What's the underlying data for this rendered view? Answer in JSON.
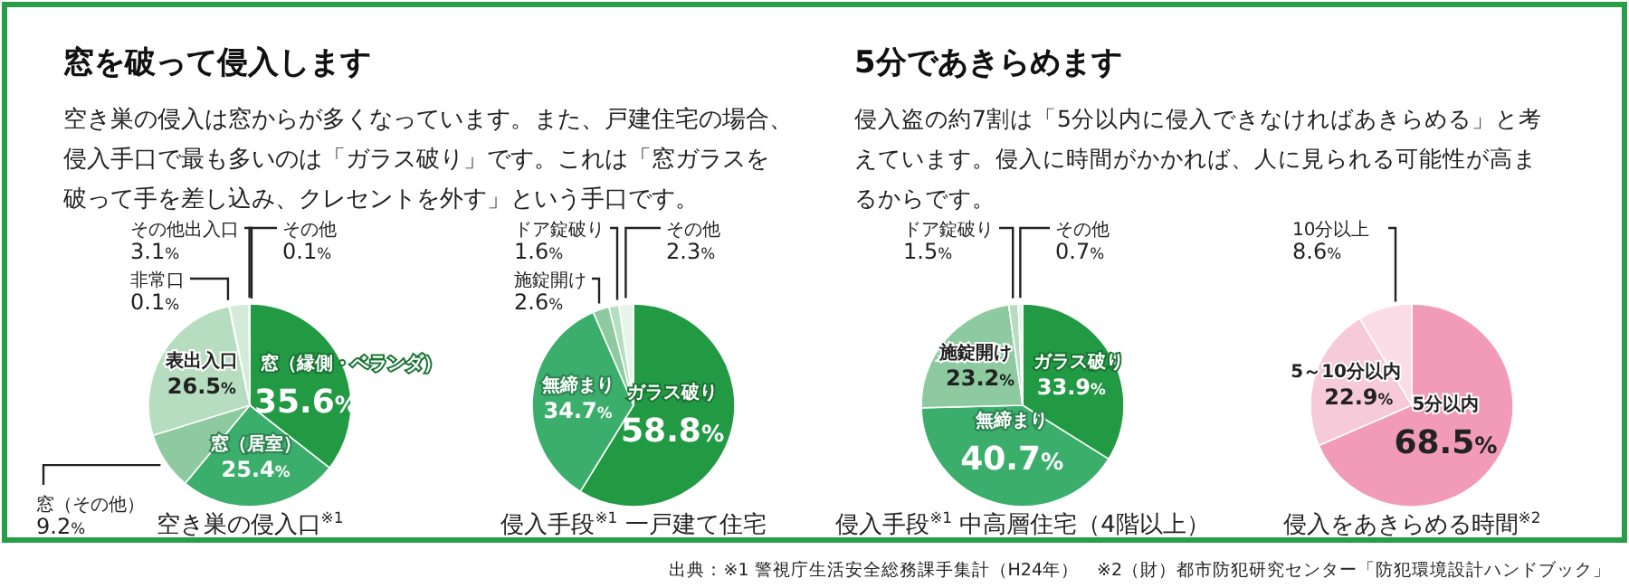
{
  "chart_data": [
    {
      "type": "pie",
      "title": "空き巣の侵入口$^{※1}$",
      "categories": [
        "窓（縁側・ベランダ）",
        "窓（居室）",
        "窓（その他）",
        "表出入口",
        "非常口",
        "その他出入口",
        "その他"
      ],
      "values": [
        35.6,
        25.4,
        9.2,
        26.5,
        0.1,
        3.1,
        0.1
      ],
      "value_labels": [
        "35.6%",
        "25.4%",
        "9.2%",
        "26.5%",
        "0.1%",
        "3.1%",
        "0.1%"
      ],
      "colors": [
        "#229a44",
        "#3cae6c",
        "#8dca9f",
        "#b6ddbf",
        "#f2f9f3",
        "#d3ebd8",
        "#e6f4e9"
      ],
      "annotations": [
        "窓を破って侵入します",
        "空き巣の侵入は窓からが多くなっています。また、戸建住宅の場合、",
        "侵入手口で最も多いのは「ガラス破り」です。これは「窓ガラスを",
        "破って手を差し込み、クレセントを外す」という手口です。"
      ]
    },
    {
      "type": "pie",
      "title": "侵入手段$^{※1}$ 一戸建て住宅",
      "categories": [
        "ガラス破り",
        "無締まり",
        "施錠開け",
        "ドア錠破り",
        "その他"
      ],
      "values": [
        58.8,
        34.7,
        2.6,
        1.6,
        2.3
      ],
      "value_labels": [
        "58.8%",
        "34.7%",
        "2.6%",
        "1.6%",
        "2.3%"
      ],
      "colors": [
        "#229a44",
        "#3cae6c",
        "#8dca9f",
        "#b6ddbf",
        "#e6f4e9"
      ]
    },
    {
      "type": "pie",
      "title": "侵入手段$^{※1}$ 中高層住宅（4階以上）",
      "categories": [
        "ガラス破り",
        "無締まり",
        "施錠開け",
        "ドア錠破り",
        "その他"
      ],
      "values": [
        33.9,
        40.7,
        23.2,
        1.5,
        0.7
      ],
      "value_labels": [
        "33.9%",
        "40.7%",
        "23.2%",
        "1.5%",
        "0.7%"
      ],
      "colors": [
        "#229a44",
        "#3cae6c",
        "#8dca9f",
        "#b6ddbf",
        "#e6f4e9"
      ],
      "annotations": [
        "5分であきらめます",
        "侵入盗の約7割は「5分以内に侵入できなければあきらめる」と考",
        "えています。侵入に時間がかかれば、人に見られる可能性が高ま",
        "るからです。"
      ]
    },
    {
      "type": "pie",
      "title": "侵入をあきらめる時間$^{※2}$",
      "categories": [
        "5分以内",
        "5～10分以内",
        "10分以上"
      ],
      "values": [
        68.5,
        22.9,
        8.6
      ],
      "value_labels": [
        "68.5%",
        "22.9%",
        "8.6%"
      ],
      "colors": [
        "#f29bb9",
        "#f6cad8",
        "#fbdde7"
      ],
      "annotations": [
        "出典：※1 警視庁生活安全総務課手集計（H24年）　※2（財）都市防犯研究センター「防犯環境設計ハンドブック」"
      ]
    }
  ]
}
